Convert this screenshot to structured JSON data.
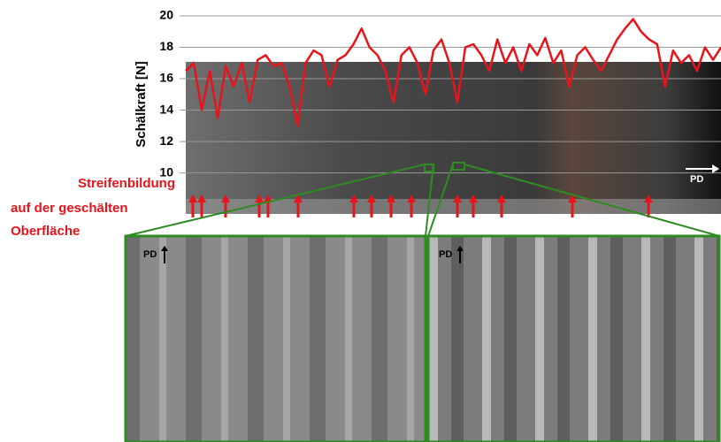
{
  "chart_data": {
    "type": "line",
    "y_label": "Schälkraft [N]",
    "color": "#e8141b",
    "values": [
      16.5,
      17,
      14,
      16.5,
      13.5,
      16.8,
      15.5,
      17,
      14.5,
      17.2,
      17.5,
      16.8,
      17,
      15.5,
      13,
      17,
      17.8,
      17.5,
      15.5,
      17.2,
      17.5,
      18.2,
      19.2,
      18,
      17.5,
      16.5,
      14.5,
      17.5,
      18,
      17,
      15,
      17.8,
      18.5,
      17,
      14.5,
      18,
      18.2,
      17.5,
      16.5,
      18.5,
      17,
      18,
      16.5,
      18.2,
      17.5,
      18.6,
      17,
      17.8,
      15.5,
      17.5,
      18,
      17.2,
      16.5,
      17.5,
      18.5,
      19.2,
      19.8,
      19,
      18.5,
      18.2,
      15.5,
      17.8,
      17,
      17.5,
      16.5,
      18,
      17.2,
      18
    ],
    "ylim": [
      7.5,
      20
    ],
    "yticks": [
      10,
      12,
      14,
      16,
      18,
      20
    ],
    "grid": true,
    "annotation_lines": [
      "Streifenbildung",
      "auf der geschälten",
      "Oberfläche"
    ],
    "direction_labels": [
      "PD",
      "PD",
      "PD"
    ]
  }
}
